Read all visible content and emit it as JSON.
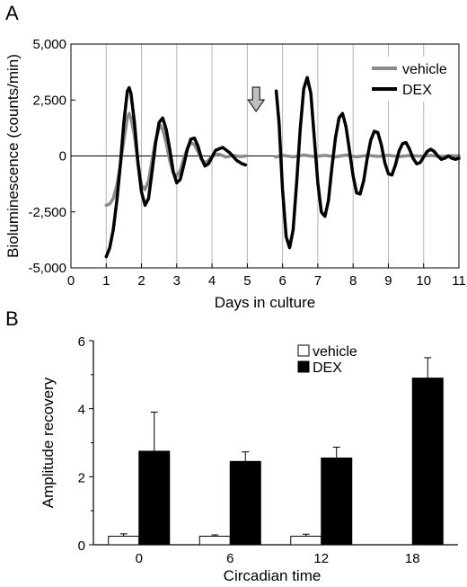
{
  "panels": {
    "a": "A",
    "b": "B"
  },
  "chart_data": [
    {
      "type": "line",
      "panel": "A",
      "xlabel": "Days in culture",
      "ylabel": "Bioluminescence (counts/min)",
      "xlim": [
        0,
        11
      ],
      "ylim": [
        -5000,
        5000
      ],
      "xticks": [
        0,
        1,
        2,
        3,
        4,
        5,
        6,
        7,
        8,
        9,
        10,
        11
      ],
      "yticks": [
        {
          "value": 5000,
          "label": "5,000"
        },
        {
          "value": 2500,
          "label": "2,500"
        },
        {
          "value": 0,
          "label": "0"
        },
        {
          "value": -2500,
          "label": "-2,500"
        },
        {
          "value": -5000,
          "label": "-5,000"
        }
      ],
      "grid": "vertical",
      "legend": "top-right",
      "annotation": {
        "type": "arrow-down",
        "day": 5.25,
        "meaning": "treatment"
      },
      "series": [
        {
          "name": "vehicle",
          "color": "#8a8a8a",
          "segments": [
            [
              [
                1.0,
                -2200
              ],
              [
                1.1,
                -2150
              ],
              [
                1.2,
                -1900
              ],
              [
                1.3,
                -1300
              ],
              [
                1.4,
                -400
              ],
              [
                1.5,
                700
              ],
              [
                1.6,
                1700
              ],
              [
                1.65,
                1900
              ],
              [
                1.7,
                1700
              ],
              [
                1.8,
                900
              ],
              [
                1.9,
                -300
              ],
              [
                2.0,
                -1300
              ],
              [
                2.1,
                -1500
              ],
              [
                2.2,
                -1100
              ],
              [
                2.3,
                -200
              ],
              [
                2.4,
                700
              ],
              [
                2.5,
                1250
              ],
              [
                2.55,
                1350
              ],
              [
                2.6,
                1200
              ],
              [
                2.7,
                600
              ],
              [
                2.8,
                -200
              ],
              [
                2.9,
                -750
              ],
              [
                3.0,
                -900
              ],
              [
                3.1,
                -650
              ],
              [
                3.2,
                -100
              ],
              [
                3.3,
                350
              ],
              [
                3.4,
                600
              ],
              [
                3.5,
                500
              ],
              [
                3.6,
                200
              ],
              [
                3.7,
                -150
              ],
              [
                3.8,
                -300
              ],
              [
                3.9,
                -200
              ],
              [
                4.0,
                0
              ],
              [
                4.2,
                80
              ],
              [
                4.4,
                -50
              ],
              [
                4.6,
                30
              ],
              [
                4.8,
                -30
              ],
              [
                4.95,
                0
              ]
            ],
            [
              [
                5.8,
                -50
              ],
              [
                6.0,
                30
              ],
              [
                6.3,
                -40
              ],
              [
                6.6,
                40
              ],
              [
                6.9,
                -30
              ],
              [
                7.2,
                30
              ],
              [
                7.5,
                -40
              ],
              [
                7.8,
                40
              ],
              [
                8.1,
                -40
              ],
              [
                8.4,
                30
              ],
              [
                8.7,
                -20
              ],
              [
                9.0,
                30
              ],
              [
                9.3,
                -30
              ],
              [
                9.6,
                20
              ],
              [
                9.9,
                -10
              ],
              [
                10.2,
                20
              ],
              [
                10.5,
                -20
              ],
              [
                10.8,
                10
              ],
              [
                11.0,
                0
              ]
            ]
          ]
        },
        {
          "name": "DEX",
          "color": "#000000",
          "segments": [
            [
              [
                1.0,
                -4500
              ],
              [
                1.1,
                -4100
              ],
              [
                1.2,
                -3300
              ],
              [
                1.3,
                -2000
              ],
              [
                1.4,
                -400
              ],
              [
                1.5,
                1500
              ],
              [
                1.6,
                2900
              ],
              [
                1.65,
                3050
              ],
              [
                1.7,
                2800
              ],
              [
                1.8,
                1500
              ],
              [
                1.9,
                -300
              ],
              [
                2.0,
                -1600
              ],
              [
                2.1,
                -2200
              ],
              [
                2.2,
                -1900
              ],
              [
                2.3,
                -700
              ],
              [
                2.4,
                600
              ],
              [
                2.5,
                1500
              ],
              [
                2.6,
                1700
              ],
              [
                2.7,
                1200
              ],
              [
                2.8,
                300
              ],
              [
                2.9,
                -700
              ],
              [
                3.0,
                -1200
              ],
              [
                3.1,
                -1050
              ],
              [
                3.2,
                -400
              ],
              [
                3.3,
                300
              ],
              [
                3.4,
                750
              ],
              [
                3.5,
                800
              ],
              [
                3.6,
                450
              ],
              [
                3.7,
                -100
              ],
              [
                3.8,
                -450
              ],
              [
                3.9,
                -350
              ],
              [
                4.0,
                -50
              ],
              [
                4.1,
                250
              ],
              [
                4.3,
                380
              ],
              [
                4.5,
                150
              ],
              [
                4.7,
                -200
              ],
              [
                4.85,
                -350
              ],
              [
                4.95,
                -400
              ]
            ],
            [
              [
                5.82,
                2900
              ],
              [
                5.9,
                1500
              ],
              [
                6.0,
                -1500
              ],
              [
                6.1,
                -3600
              ],
              [
                6.2,
                -4100
              ],
              [
                6.3,
                -3300
              ],
              [
                6.4,
                -1200
              ],
              [
                6.5,
                1200
              ],
              [
                6.6,
                3000
              ],
              [
                6.7,
                3500
              ],
              [
                6.8,
                2800
              ],
              [
                6.9,
                800
              ],
              [
                7.0,
                -1200
              ],
              [
                7.1,
                -2500
              ],
              [
                7.2,
                -2700
              ],
              [
                7.3,
                -2000
              ],
              [
                7.4,
                -500
              ],
              [
                7.5,
                800
              ],
              [
                7.6,
                1700
              ],
              [
                7.7,
                1900
              ],
              [
                7.8,
                1300
              ],
              [
                7.9,
                200
              ],
              [
                8.0,
                -900
              ],
              [
                8.1,
                -1650
              ],
              [
                8.2,
                -1700
              ],
              [
                8.3,
                -1100
              ],
              [
                8.4,
                -100
              ],
              [
                8.5,
                700
              ],
              [
                8.6,
                1100
              ],
              [
                8.7,
                1050
              ],
              [
                8.8,
                500
              ],
              [
                8.9,
                -300
              ],
              [
                9.0,
                -800
              ],
              [
                9.1,
                -850
              ],
              [
                9.2,
                -400
              ],
              [
                9.3,
                200
              ],
              [
                9.4,
                550
              ],
              [
                9.5,
                600
              ],
              [
                9.6,
                300
              ],
              [
                9.7,
                -100
              ],
              [
                9.8,
                -350
              ],
              [
                9.9,
                -300
              ],
              [
                10.0,
                -50
              ],
              [
                10.1,
                200
              ],
              [
                10.2,
                300
              ],
              [
                10.3,
                200
              ],
              [
                10.4,
                0
              ],
              [
                10.5,
                -150
              ],
              [
                10.6,
                -100
              ],
              [
                10.7,
                0
              ],
              [
                10.8,
                -100
              ],
              [
                10.9,
                -150
              ],
              [
                11.0,
                -100
              ]
            ]
          ]
        }
      ]
    },
    {
      "type": "bar",
      "panel": "B",
      "xlabel": "Circadian time",
      "ylabel": "Amplitude recovery",
      "categories": [
        "0",
        "6",
        "12",
        "18"
      ],
      "ylim": [
        0,
        6
      ],
      "yticks": [
        0,
        2,
        4,
        6
      ],
      "legend": "top-right",
      "series": [
        {
          "name": "vehicle",
          "color": "#ffffff",
          "values": [
            0.25,
            0.25,
            0.25,
            null
          ],
          "errors": [
            0.07,
            0.04,
            0.06,
            null
          ]
        },
        {
          "name": "DEX",
          "color": "#000000",
          "values": [
            2.75,
            2.45,
            2.55,
            4.9
          ],
          "errors": [
            1.15,
            0.28,
            0.32,
            0.6
          ]
        }
      ]
    }
  ]
}
